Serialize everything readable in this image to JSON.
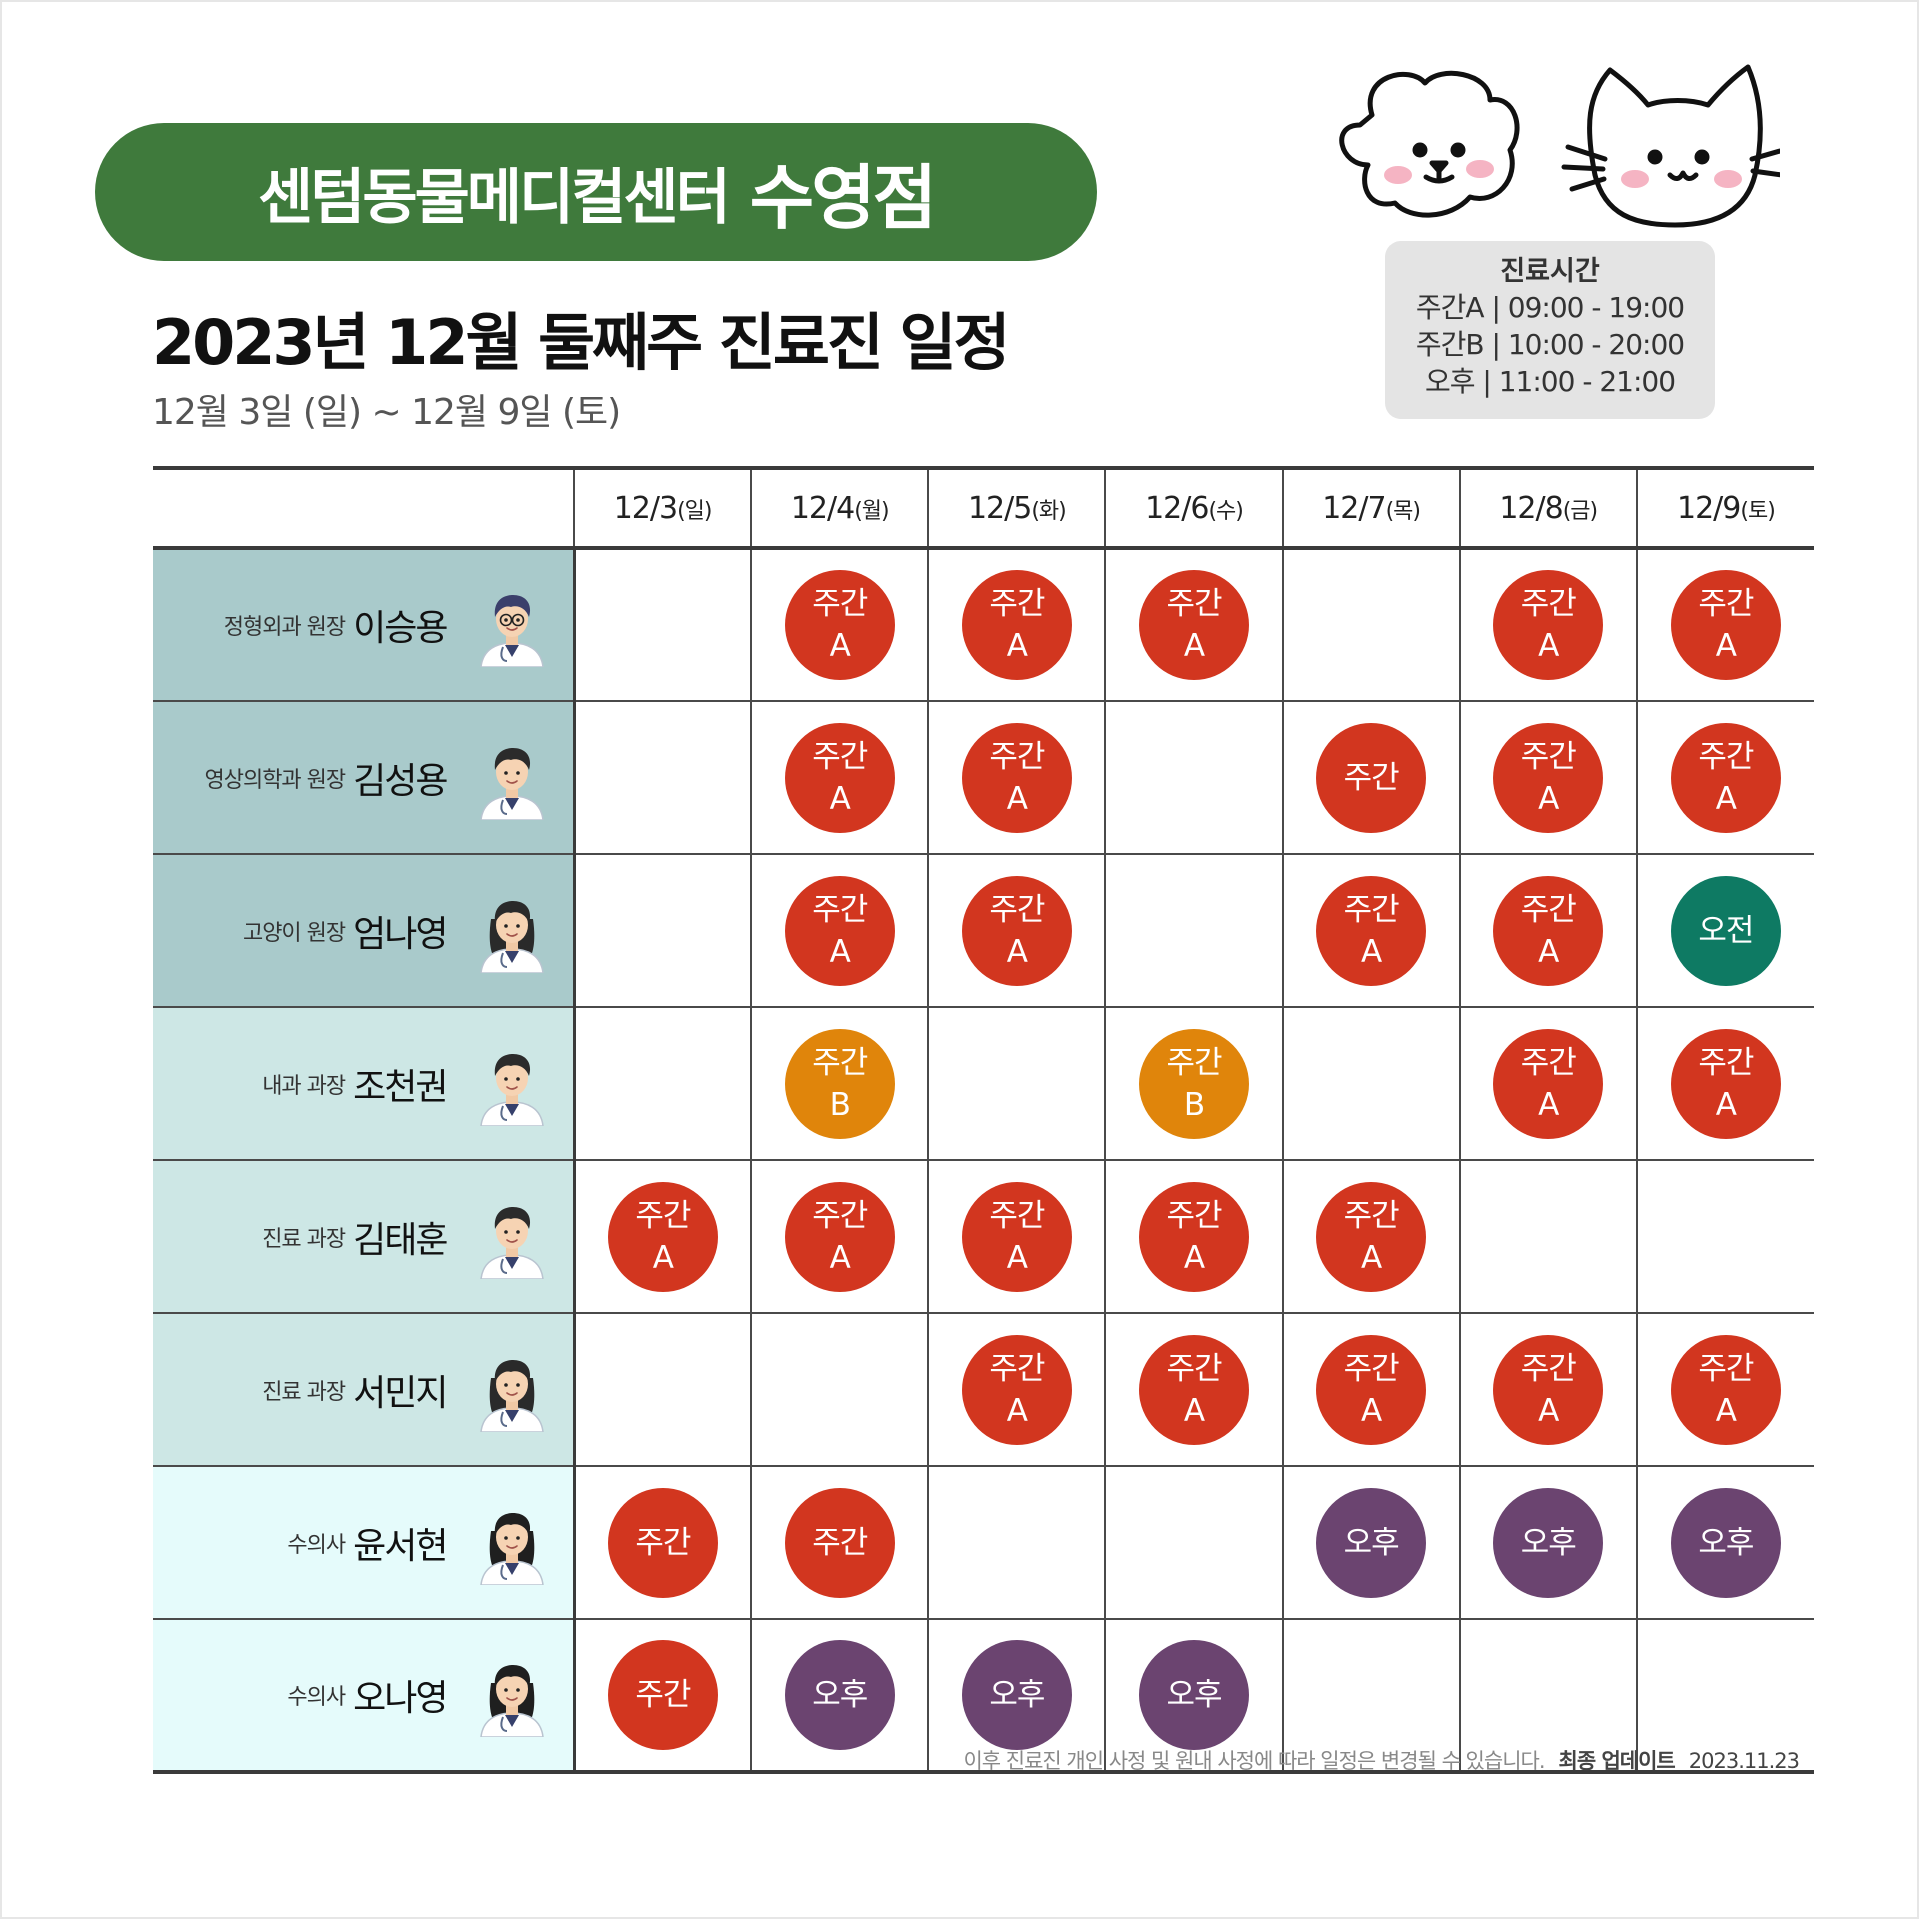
{
  "brand": {
    "name": "센텀동물메디컬센터",
    "branch": "수영점"
  },
  "title": "2023년 12월 둘째주 진료진 일정",
  "subtitle": "12월 3일 (일) ~ 12월 9일 (토)",
  "hours": {
    "title": "진료시간",
    "lines": [
      "주간A | 09:00 - 19:00",
      "주간B | 10:00 - 20:00",
      "오후 | 11:00 - 21:00"
    ]
  },
  "columns": [
    {
      "date": "12/3",
      "dow": "(일)"
    },
    {
      "date": "12/4",
      "dow": "(월)"
    },
    {
      "date": "12/5",
      "dow": "(화)"
    },
    {
      "date": "12/6",
      "dow": "(수)"
    },
    {
      "date": "12/7",
      "dow": "(목)"
    },
    {
      "date": "12/8",
      "dow": "(금)"
    },
    {
      "date": "12/9",
      "dow": "(토)"
    }
  ],
  "shift_types": {
    "A": {
      "line1": "주간",
      "line2": "A",
      "color": "#d2361f"
    },
    "B": {
      "line1": "주간",
      "line2": "B",
      "color": "#e0850b"
    },
    "D": {
      "line1": "주간",
      "line2": "",
      "color": "#d2361f"
    },
    "AM": {
      "line1": "오전",
      "line2": "",
      "color": "#0e7a63"
    },
    "PM": {
      "line1": "오후",
      "line2": "",
      "color": "#6b4470"
    }
  },
  "doctors": [
    {
      "role": "정형외과 원장",
      "name": "이승용",
      "bg": "#a9cacb",
      "avatar": "doctor-glasses",
      "shifts": [
        "",
        "A",
        "A",
        "A",
        "",
        "A",
        "A"
      ]
    },
    {
      "role": "영상의학과 원장",
      "name": "김성용",
      "bg": "#a9cacb",
      "avatar": "doctor-male",
      "shifts": [
        "",
        "A",
        "A",
        "",
        "D",
        "A",
        "A"
      ]
    },
    {
      "role": "고양이 원장",
      "name": "엄나영",
      "bg": "#a9cacb",
      "avatar": "doctor-female",
      "shifts": [
        "",
        "A",
        "A",
        "",
        "A",
        "A",
        "AM"
      ]
    },
    {
      "role": "내과 과장",
      "name": "조천권",
      "bg": "#cde7e5",
      "avatar": "doctor-male",
      "shifts": [
        "",
        "B",
        "",
        "B",
        "",
        "A",
        "A"
      ]
    },
    {
      "role": "진료 과장",
      "name": "김태훈",
      "bg": "#cde7e5",
      "avatar": "doctor-male",
      "shifts": [
        "A",
        "A",
        "A",
        "A",
        "A",
        "",
        ""
      ]
    },
    {
      "role": "진료 과장",
      "name": "서민지",
      "bg": "#cde7e5",
      "avatar": "doctor-female",
      "shifts": [
        "",
        "",
        "A",
        "A",
        "A",
        "A",
        "A"
      ]
    },
    {
      "role": "수의사",
      "name": "윤서현",
      "bg": "#e5fbfb",
      "avatar": "vet-female",
      "shifts": [
        "D",
        "D",
        "",
        "",
        "PM",
        "PM",
        "PM"
      ]
    },
    {
      "role": "수의사",
      "name": "오나영",
      "bg": "#e5fbfb",
      "avatar": "vet-female",
      "shifts": [
        "D",
        "PM",
        "PM",
        "PM",
        "",
        "",
        ""
      ]
    }
  ],
  "footer": {
    "notice": "이후 진료진 개인 사정 및 원내 사정에 따라 일정은 변경될 수 있습니다.",
    "update_label": "최종 업데이트",
    "update_date": "2023.11.23"
  },
  "icons": {
    "dog": "dog-face-icon",
    "cat": "cat-face-icon"
  }
}
